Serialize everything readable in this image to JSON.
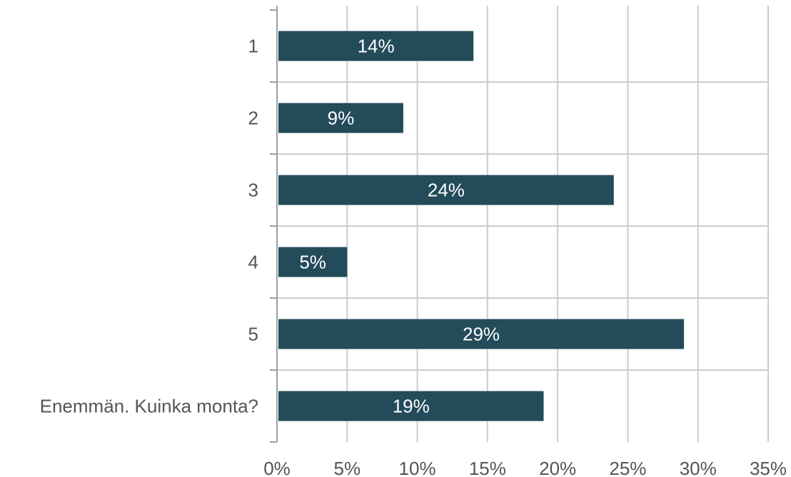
{
  "chart_data": {
    "type": "bar",
    "orientation": "horizontal",
    "categories": [
      "1",
      "2",
      "3",
      "4",
      "5",
      "Enemmän. Kuinka monta?"
    ],
    "values": [
      14,
      9,
      24,
      5,
      29,
      19
    ],
    "data_labels": [
      "14%",
      "9%",
      "24%",
      "5%",
      "29%",
      "19%"
    ],
    "xlim": [
      0,
      35
    ],
    "x_ticks": [
      0,
      5,
      10,
      15,
      20,
      25,
      30,
      35
    ],
    "x_tick_labels": [
      "0%",
      "5%",
      "10%",
      "15%",
      "20%",
      "25%",
      "30%",
      "35%"
    ],
    "grid": true,
    "colors": {
      "bar": "#234b5a",
      "grid": "#c8cdd0",
      "axis": "#9aa0a4",
      "text": "#555555",
      "bar_text": "#ffffff"
    }
  }
}
